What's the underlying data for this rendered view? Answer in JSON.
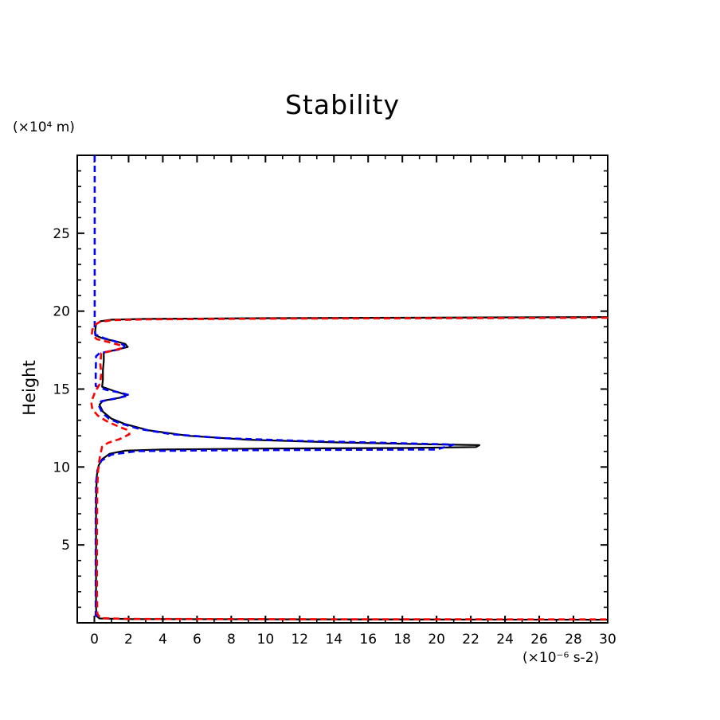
{
  "labels": {
    "title": "Stability",
    "ylabel": "Height",
    "y_unit": "(×10⁴ m)",
    "x_unit": "(×10⁻⁶ s-2)"
  },
  "chart_data": {
    "type": "line",
    "title": "Stability",
    "xlabel_unit": "(×10⁻⁶ s-2)",
    "ylabel": "Height",
    "ylabel_unit": "(×10⁴ m)",
    "axes": {
      "xlim": [
        -1,
        30
      ],
      "ylim": [
        0,
        30
      ],
      "grid": false,
      "x_major_ticks": [
        0,
        2,
        4,
        6,
        8,
        10,
        12,
        14,
        16,
        18,
        20,
        22,
        24,
        26,
        28,
        30
      ],
      "x_minor_ticks": [
        1,
        3,
        5,
        7,
        9,
        11,
        13,
        15,
        17,
        19,
        21,
        23,
        25,
        27,
        29
      ],
      "y_major_ticks": [
        5,
        10,
        15,
        20,
        25
      ],
      "y_minor_ticks": [
        1,
        2,
        3,
        4,
        6,
        7,
        8,
        9,
        11,
        12,
        13,
        14,
        16,
        17,
        18,
        19,
        21,
        22,
        23,
        24,
        26,
        27,
        28,
        29
      ]
    },
    "series": [
      {
        "name": "black-solid",
        "color": "#000000",
        "dash": "none",
        "width": 2.2,
        "points": [
          [
            30,
            19.62
          ],
          [
            10,
            19.55
          ],
          [
            3,
            19.5
          ],
          [
            1,
            19.45
          ],
          [
            0.35,
            19.35
          ],
          [
            0.1,
            19.15
          ],
          [
            0.05,
            18.8
          ],
          [
            0.05,
            18.45
          ],
          [
            0.5,
            18.25
          ],
          [
            1.3,
            18.05
          ],
          [
            1.8,
            17.9
          ],
          [
            1.95,
            17.7
          ],
          [
            1.2,
            17.5
          ],
          [
            0.55,
            17.35
          ],
          [
            0.55,
            16.8
          ],
          [
            0.5,
            16.2
          ],
          [
            0.5,
            15.6
          ],
          [
            0.45,
            15.15
          ],
          [
            1.1,
            14.9
          ],
          [
            1.9,
            14.62
          ],
          [
            1.5,
            14.45
          ],
          [
            0.5,
            14.25
          ],
          [
            0.3,
            14.0
          ],
          [
            0.5,
            13.55
          ],
          [
            1.0,
            13.1
          ],
          [
            1.8,
            12.75
          ],
          [
            3.2,
            12.35
          ],
          [
            5.5,
            12.0
          ],
          [
            9,
            11.75
          ],
          [
            14,
            11.58
          ],
          [
            19,
            11.47
          ],
          [
            22.5,
            11.4
          ],
          [
            22.3,
            11.28
          ],
          [
            18,
            11.22
          ],
          [
            10,
            11.18
          ],
          [
            4,
            11.12
          ],
          [
            1.8,
            11.05
          ],
          [
            0.9,
            10.85
          ],
          [
            0.45,
            10.5
          ],
          [
            0.25,
            10.1
          ],
          [
            0.15,
            9.5
          ],
          [
            0.12,
            8.8
          ],
          [
            0.1,
            7
          ],
          [
            0.1,
            4
          ],
          [
            0.1,
            1
          ],
          [
            0.12,
            0.45
          ],
          [
            0.3,
            0.28
          ],
          [
            2,
            0.24
          ],
          [
            30,
            0.2
          ]
        ]
      },
      {
        "name": "blue-dashed",
        "color": "#0000ff",
        "dash": "8 5",
        "width": 2.6,
        "points": [
          [
            0.02,
            30
          ],
          [
            0.02,
            25
          ],
          [
            0.02,
            20
          ],
          [
            0.02,
            18.9
          ],
          [
            0.05,
            18.5
          ],
          [
            0.6,
            18.25
          ],
          [
            1.4,
            18.0
          ],
          [
            1.75,
            17.8
          ],
          [
            1.7,
            17.6
          ],
          [
            1.0,
            17.45
          ],
          [
            0.3,
            17.3
          ],
          [
            0.1,
            17.1
          ],
          [
            0.08,
            16
          ],
          [
            0.08,
            15.2
          ],
          [
            0.7,
            14.95
          ],
          [
            1.6,
            14.75
          ],
          [
            2.05,
            14.6
          ],
          [
            1.3,
            14.4
          ],
          [
            0.4,
            14.22
          ],
          [
            0.25,
            13.95
          ],
          [
            0.45,
            13.5
          ],
          [
            0.85,
            13.1
          ],
          [
            1.5,
            12.8
          ],
          [
            2.6,
            12.45
          ],
          [
            4.5,
            12.1
          ],
          [
            7.5,
            11.85
          ],
          [
            12,
            11.68
          ],
          [
            17,
            11.55
          ],
          [
            21,
            11.44
          ],
          [
            20,
            11.12
          ],
          [
            14,
            11.1
          ],
          [
            7,
            11.07
          ],
          [
            2.5,
            11.02
          ],
          [
            1.0,
            10.8
          ],
          [
            0.4,
            10.4
          ],
          [
            0.18,
            9.8
          ],
          [
            0.1,
            9.0
          ],
          [
            0.08,
            7
          ],
          [
            0.08,
            3
          ],
          [
            0.08,
            0.5
          ],
          [
            0.2,
            0.3
          ]
        ]
      },
      {
        "name": "red-dashed",
        "color": "#ff0000",
        "dash": "8 5",
        "width": 2.6,
        "points": [
          [
            30,
            19.58
          ],
          [
            10,
            19.52
          ],
          [
            3,
            19.47
          ],
          [
            1,
            19.42
          ],
          [
            0.3,
            19.3
          ],
          [
            0.0,
            19.1
          ],
          [
            -0.12,
            18.8
          ],
          [
            -0.15,
            18.5
          ],
          [
            0.15,
            18.2
          ],
          [
            0.9,
            18.0
          ],
          [
            1.55,
            17.8
          ],
          [
            1.6,
            17.62
          ],
          [
            1.0,
            17.45
          ],
          [
            0.4,
            17.3
          ],
          [
            0.35,
            16.6
          ],
          [
            0.4,
            16.0
          ],
          [
            0.35,
            15.4
          ],
          [
            0.2,
            15.1
          ],
          [
            0.05,
            14.85
          ],
          [
            -0.05,
            14.55
          ],
          [
            -0.18,
            14.15
          ],
          [
            -0.12,
            13.7
          ],
          [
            0.2,
            13.3
          ],
          [
            0.7,
            12.95
          ],
          [
            1.4,
            12.6
          ],
          [
            2.0,
            12.35
          ],
          [
            2.05,
            12.1
          ],
          [
            1.5,
            11.8
          ],
          [
            0.8,
            11.55
          ],
          [
            0.45,
            11.3
          ],
          [
            0.35,
            10.8
          ],
          [
            0.25,
            10.2
          ],
          [
            0.2,
            9.5
          ],
          [
            0.17,
            8.5
          ],
          [
            0.15,
            6
          ],
          [
            0.15,
            2
          ],
          [
            0.17,
            0.6
          ],
          [
            0.35,
            0.3
          ],
          [
            2,
            0.25
          ],
          [
            14,
            0.23
          ],
          [
            30,
            0.22
          ]
        ]
      }
    ]
  }
}
